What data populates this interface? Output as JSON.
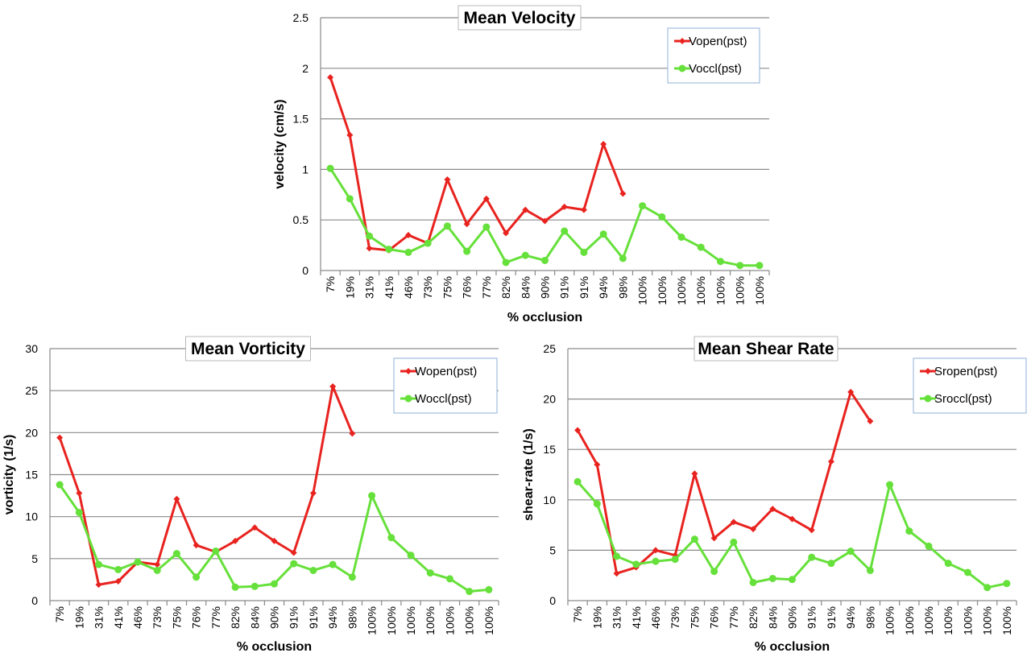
{
  "colors": {
    "open": "#e8231f",
    "occl": "#66e03a",
    "grid": "#8a8a8a"
  },
  "chart_data": [
    {
      "type": "line",
      "title": "Mean Velocity",
      "xlabel": "% occlusion",
      "ylabel": "velocity (cm/s)",
      "ylim": [
        0,
        2.5
      ],
      "yticks": [
        "0",
        "0.5",
        "1",
        "1.5",
        "2",
        "2.5"
      ],
      "grid": true,
      "legend_position": "top-right",
      "categories": [
        "7%",
        "19%",
        "31%",
        "41%",
        "46%",
        "73%",
        "75%",
        "76%",
        "77%",
        "82%",
        "84%",
        "90%",
        "91%",
        "91%",
        "94%",
        "98%",
        "100%",
        "100%",
        "100%",
        "100%",
        "100%",
        "100%",
        "100%"
      ],
      "series": [
        {
          "name": "Vopen(pst)",
          "marker": "diamond",
          "values": [
            1.91,
            1.34,
            0.22,
            0.2,
            0.35,
            0.27,
            0.9,
            0.46,
            0.71,
            0.37,
            0.6,
            0.49,
            0.63,
            0.6,
            1.25,
            0.76,
            null,
            null,
            null,
            null,
            null,
            null,
            null
          ]
        },
        {
          "name": "Voccl(pst)",
          "marker": "circle",
          "values": [
            1.01,
            0.71,
            0.34,
            0.21,
            0.18,
            0.27,
            0.44,
            0.19,
            0.43,
            0.08,
            0.15,
            0.1,
            0.39,
            0.18,
            0.36,
            0.12,
            0.64,
            0.53,
            0.33,
            0.23,
            0.09,
            0.05,
            0.05
          ]
        }
      ]
    },
    {
      "type": "line",
      "title": "Mean Vorticity",
      "xlabel": "% occlusion",
      "ylabel": "vorticity (1/s)",
      "ylim": [
        0,
        30
      ],
      "yticks": [
        "0",
        "5",
        "10",
        "15",
        "20",
        "25",
        "30"
      ],
      "grid": true,
      "legend_position": "top-right",
      "categories": [
        "7%",
        "19%",
        "31%",
        "41%",
        "46%",
        "73%",
        "75%",
        "76%",
        "77%",
        "82%",
        "84%",
        "90%",
        "91%",
        "91%",
        "94%",
        "98%",
        "100%",
        "100%",
        "100%",
        "100%",
        "100%",
        "100%",
        "100%"
      ],
      "series": [
        {
          "name": "Wopen(pst)",
          "marker": "diamond",
          "values": [
            19.4,
            12.8,
            1.9,
            2.3,
            4.6,
            4.3,
            12.1,
            6.6,
            5.8,
            7.1,
            8.7,
            7.1,
            5.7,
            12.8,
            25.5,
            19.9,
            null,
            null,
            null,
            null,
            null,
            null,
            null
          ]
        },
        {
          "name": "Woccl(pst)",
          "marker": "circle",
          "values": [
            13.8,
            10.5,
            4.3,
            3.7,
            4.6,
            3.6,
            5.6,
            2.8,
            5.9,
            1.6,
            1.7,
            2.0,
            4.4,
            3.6,
            4.3,
            2.8,
            12.5,
            7.5,
            5.4,
            3.3,
            2.6,
            1.1,
            1.3
          ]
        }
      ]
    },
    {
      "type": "line",
      "title": "Mean Shear Rate",
      "xlabel": "% occlusion",
      "ylabel": "shear-rate (1/s)",
      "ylim": [
        0,
        25
      ],
      "yticks": [
        "0",
        "5",
        "10",
        "15",
        "20",
        "25"
      ],
      "grid": true,
      "legend_position": "top-right",
      "categories": [
        "7%",
        "19%",
        "31%",
        "41%",
        "46%",
        "73%",
        "75%",
        "76%",
        "77%",
        "82%",
        "84%",
        "90%",
        "91%",
        "91%",
        "94%",
        "98%",
        "100%",
        "100%",
        "100%",
        "100%",
        "100%",
        "100%",
        "100%"
      ],
      "series": [
        {
          "name": "Sropen(pst)",
          "marker": "diamond",
          "values": [
            16.9,
            13.5,
            2.7,
            3.3,
            5.0,
            4.5,
            12.6,
            6.2,
            7.8,
            7.1,
            9.1,
            8.1,
            7.0,
            13.8,
            20.7,
            17.8,
            null,
            null,
            null,
            null,
            null,
            null,
            null
          ]
        },
        {
          "name": "Sroccl(pst)",
          "marker": "circle",
          "values": [
            11.8,
            9.6,
            4.4,
            3.6,
            3.9,
            4.1,
            6.1,
            2.9,
            5.8,
            1.8,
            2.2,
            2.1,
            4.3,
            3.7,
            4.9,
            3.0,
            11.5,
            6.9,
            5.4,
            3.7,
            2.8,
            1.3,
            1.7
          ]
        }
      ]
    }
  ]
}
